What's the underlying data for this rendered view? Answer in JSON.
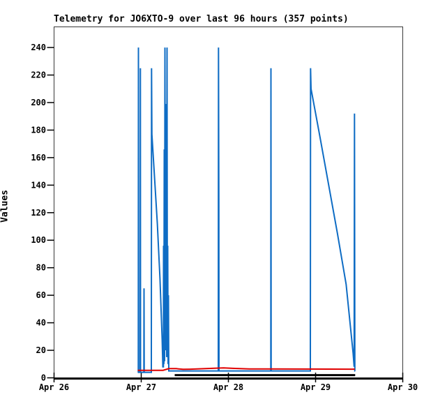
{
  "page": {
    "background": "#ffffff",
    "kind": "telemetry-graph"
  },
  "chart_data": {
    "type": "line",
    "title": "Telemetry for JO6XTO-9 over last 96 hours (357 points)",
    "ylabel": "Values",
    "xlabel": "",
    "grid": false,
    "legend": "none",
    "xlim": [
      0,
      4
    ],
    "ylim": [
      0,
      255
    ],
    "x_tick_labels": [
      "Apr 26",
      "Apr 27",
      "Apr 28",
      "Apr 29",
      "Apr 30"
    ],
    "x_tick_positions": [
      0,
      1,
      2,
      3,
      4
    ],
    "y_ticks": [
      0,
      20,
      40,
      60,
      80,
      100,
      120,
      140,
      160,
      180,
      200,
      220,
      240
    ],
    "axis_color": "#383838",
    "tick_color": "#000000",
    "text_color": "#000000",
    "series": [
      {
        "name": "channel-1-blue",
        "color": "#0e6cc4",
        "width": 2,
        "points": [
          [
            0.96,
            4
          ],
          [
            0.966,
            4
          ],
          [
            0.968,
            240
          ],
          [
            0.97,
            4
          ],
          [
            0.988,
            4
          ],
          [
            0.99,
            225
          ],
          [
            0.992,
            4
          ],
          [
            1.03,
            4
          ],
          [
            1.032,
            65
          ],
          [
            1.034,
            4
          ],
          [
            1.116,
            4
          ],
          [
            1.118,
            225
          ],
          [
            1.122,
            177
          ],
          [
            1.15,
            148
          ],
          [
            1.185,
            112
          ],
          [
            1.215,
            72
          ],
          [
            1.24,
            28
          ],
          [
            1.248,
            8
          ],
          [
            1.254,
            8
          ],
          [
            1.256,
            96
          ],
          [
            1.26,
            10
          ],
          [
            1.264,
            166
          ],
          [
            1.268,
            12
          ],
          [
            1.272,
            240
          ],
          [
            1.276,
            30
          ],
          [
            1.28,
            199
          ],
          [
            1.284,
            20
          ],
          [
            1.288,
            150
          ],
          [
            1.292,
            15
          ],
          [
            1.296,
            240
          ],
          [
            1.3,
            20
          ],
          [
            1.304,
            96
          ],
          [
            1.308,
            10
          ],
          [
            1.312,
            60
          ],
          [
            1.316,
            5
          ],
          [
            1.884,
            5
          ],
          [
            1.886,
            240
          ],
          [
            1.89,
            128
          ],
          [
            1.892,
            5
          ],
          [
            2.486,
            5
          ],
          [
            2.488,
            225
          ],
          [
            2.49,
            5
          ],
          [
            2.94,
            5
          ],
          [
            2.942,
            225
          ],
          [
            2.948,
            210
          ],
          [
            3.05,
            175
          ],
          [
            3.15,
            140
          ],
          [
            3.25,
            105
          ],
          [
            3.35,
            68
          ],
          [
            3.43,
            18
          ],
          [
            3.442,
            8
          ],
          [
            3.446,
            192
          ],
          [
            3.45,
            5
          ],
          [
            3.454,
            5
          ]
        ]
      },
      {
        "name": "channel-3-black",
        "color": "#000000",
        "width": 3,
        "points": [
          [
            1.384,
            2
          ],
          [
            3.454,
            2
          ]
        ]
      },
      {
        "name": "channel-2-red",
        "color": "#e00000",
        "width": 2,
        "points": [
          [
            0.96,
            5.5
          ],
          [
            1.25,
            5.5
          ],
          [
            1.316,
            6.7
          ],
          [
            1.4,
            6.7
          ],
          [
            1.48,
            6.2
          ],
          [
            1.56,
            6.3
          ],
          [
            1.944,
            7.2
          ],
          [
            2.05,
            6.9
          ],
          [
            2.24,
            6.5
          ],
          [
            2.85,
            6.4
          ],
          [
            3.45,
            6.3
          ]
        ]
      }
    ]
  }
}
